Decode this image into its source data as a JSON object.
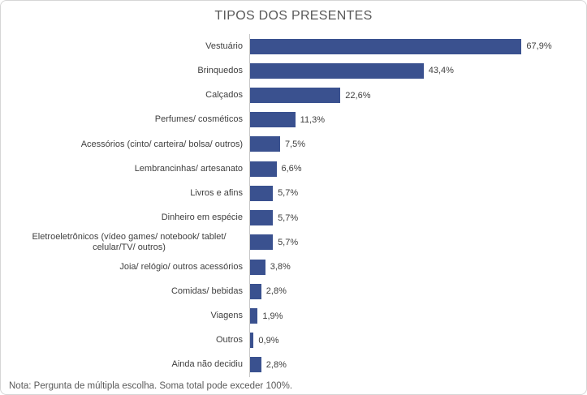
{
  "chart": {
    "title": "TIPOS DOS PRESENTES",
    "note": "Nota: Pergunta de múltipla escolha. Soma total pode exceder 100%.",
    "bar_color": "#3a518f",
    "axis_color": "#c6c6c6",
    "label_color": "#404040",
    "title_color": "#595959"
  },
  "chart_data": {
    "type": "bar",
    "orientation": "horizontal",
    "title": "TIPOS DOS PRESENTES",
    "categories": [
      "Vestuário",
      "Brinquedos",
      "Calçados",
      "Perfumes/ cosméticos",
      "Acessórios (cinto/ carteira/ bolsa/ outros)",
      "Lembrancinhas/ artesanato",
      "Livros e afins",
      "Dinheiro em espécie",
      "Eletroeletrônicos (vídeo games/ notebook/ tablet/ celular/TV/ outros)",
      "Joia/ relógio/ outros acessórios",
      "Comidas/ bebidas",
      "Viagens",
      "Outros",
      "Ainda não decidiu"
    ],
    "values": [
      67.9,
      43.4,
      22.6,
      11.3,
      7.5,
      6.6,
      5.7,
      5.7,
      5.7,
      3.8,
      2.8,
      1.9,
      0.9,
      2.8
    ],
    "value_labels": [
      "67,9%",
      "43,4%",
      "22,6%",
      "11,3%",
      "7,5%",
      "6,6%",
      "5,7%",
      "5,7%",
      "5,7%",
      "3,8%",
      "2,8%",
      "1,9%",
      "0,9%",
      "2,8%"
    ],
    "xlabel": "",
    "ylabel": "",
    "xlim": [
      0,
      80
    ],
    "grid": false,
    "legend": false,
    "data_labels": true,
    "note": "Nota: Pergunta de múltipla escolha. Soma total pode exceder 100%."
  }
}
